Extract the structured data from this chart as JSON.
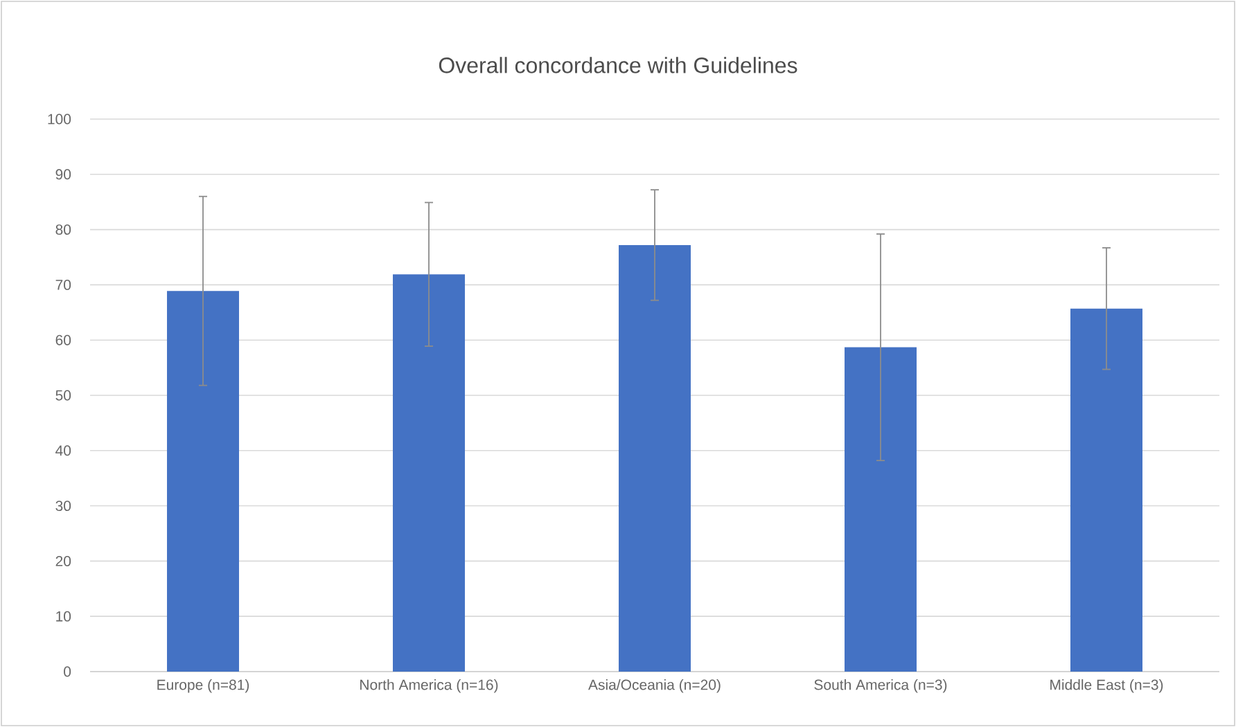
{
  "chart_data": {
    "type": "bar",
    "title": "Overall concordance with Guidelines",
    "categories": [
      "Europe (n=81)",
      "North America (n=16)",
      "Asia/Oceania (n=20)",
      "South America (n=3)",
      "Middle East (n=3)"
    ],
    "values": [
      68.9,
      71.9,
      77.2,
      58.7,
      65.7
    ],
    "errors": [
      17.1,
      13,
      10,
      20.5,
      11
    ],
    "color": "#4472c4",
    "ylim": [
      0,
      100
    ],
    "yticks": [
      0,
      10,
      20,
      30,
      40,
      50,
      60,
      70,
      80,
      90,
      100
    ],
    "grid": "y"
  }
}
